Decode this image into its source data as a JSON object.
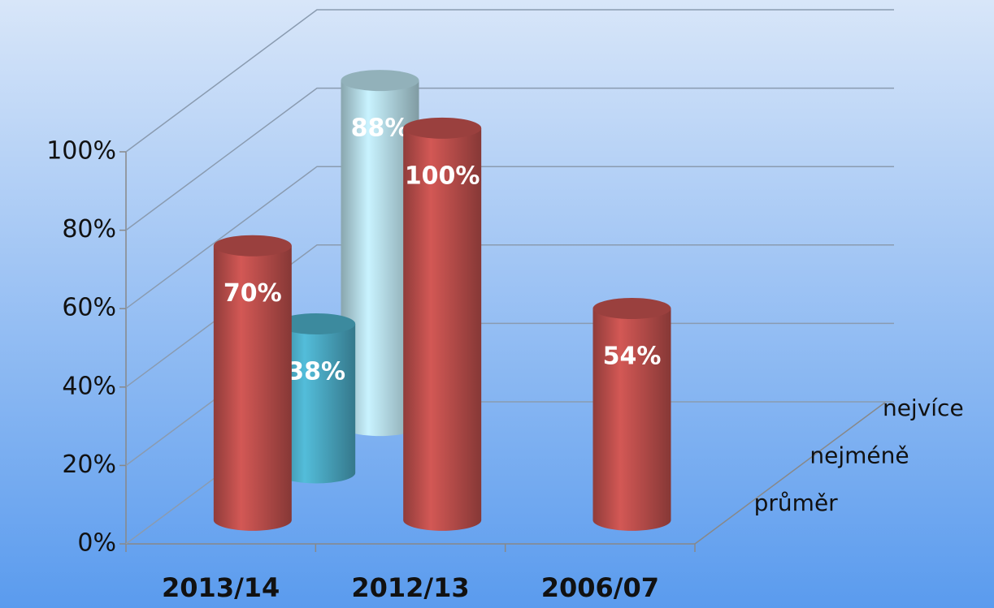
{
  "chart_data": {
    "type": "bar3d",
    "categories": [
      "2013/14",
      "2012/13",
      "2006/07"
    ],
    "series": [
      {
        "name": "průměr",
        "color": "#c0504d",
        "values": [
          70,
          100,
          54
        ],
        "value_labels": [
          "70%",
          "100%",
          "54%"
        ]
      },
      {
        "name": "nejméně",
        "color": "#4bacc6",
        "values": [
          38,
          null,
          null
        ],
        "value_labels": [
          "38%",
          null,
          null
        ]
      },
      {
        "name": "nejvíce",
        "color": "#b7dde8",
        "values": [
          88,
          null,
          null
        ],
        "value_labels": [
          "88%",
          null,
          null
        ]
      }
    ],
    "ylim": [
      0,
      100
    ],
    "yticks": [
      {
        "value": 0,
        "label": "0%"
      },
      {
        "value": 20,
        "label": "20%"
      },
      {
        "value": 40,
        "label": "40%"
      },
      {
        "value": 60,
        "label": "60%"
      },
      {
        "value": 80,
        "label": "80%"
      },
      {
        "value": 100,
        "label": "100%"
      }
    ],
    "grid": true
  }
}
